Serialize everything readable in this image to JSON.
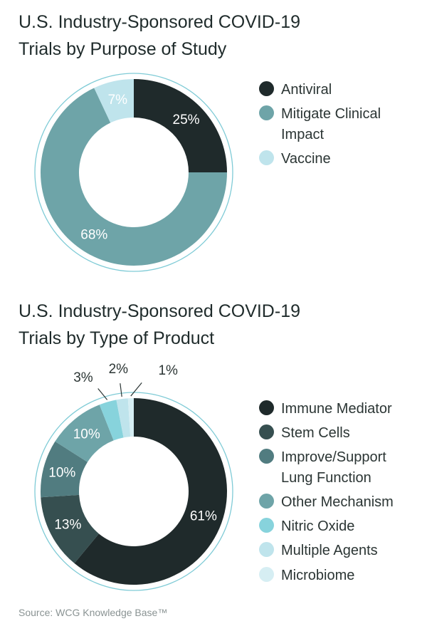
{
  "source": "Source: WCG Knowledge Base™",
  "chart_data": [
    {
      "type": "pie",
      "title": "U.S. Industry-Sponsored COVID-19 Trials by Purpose of Study",
      "title_lines": [
        "U.S. Industry-Sponsored COVID-19",
        "Trials by Purpose of Study"
      ],
      "categories": [
        "Antiviral",
        "Mitigate Clinical Impact",
        "Vaccine"
      ],
      "legend_lines": [
        [
          "Antiviral"
        ],
        [
          "Mitigate Clinical",
          "Impact"
        ],
        [
          "Vaccine"
        ]
      ],
      "values": [
        25,
        68,
        7
      ],
      "labels": [
        "25%",
        "68%",
        "7%"
      ],
      "colors": [
        "#1f2a2b",
        "#6ea4a8",
        "#bfe4ec"
      ],
      "label_colors": [
        "#ffffff",
        "#ffffff",
        "#ffffff"
      ],
      "legend_position": "right"
    },
    {
      "type": "pie",
      "title": "U.S. Industry-Sponsored COVID-19 Trials by Type of Product",
      "title_lines": [
        "U.S. Industry-Sponsored COVID-19",
        "Trials by Type of Product"
      ],
      "categories": [
        "Immune Mediator",
        "Stem Cells",
        "Improve/Support Lung Function",
        "Other Mechanism",
        "Nitric Oxide",
        "Multiple Agents",
        "Microbiome"
      ],
      "legend_lines": [
        [
          "Immune Mediator"
        ],
        [
          "Stem Cells"
        ],
        [
          "Improve/Support",
          "Lung Function"
        ],
        [
          "Other Mechanism"
        ],
        [
          "Nitric Oxide"
        ],
        [
          "Multiple Agents"
        ],
        [
          "Microbiome"
        ]
      ],
      "values": [
        61,
        13,
        10,
        10,
        3,
        2,
        1
      ],
      "labels": [
        "61%",
        "13%",
        "10%",
        "10%",
        "3%",
        "2%",
        "1%"
      ],
      "colors": [
        "#1f2a2b",
        "#364f50",
        "#517c80",
        "#6ea4a8",
        "#87d3dc",
        "#bfe4ec",
        "#d6eef3"
      ],
      "label_colors": [
        "#ffffff",
        "#ffffff",
        "#ffffff",
        "#ffffff",
        "#2b3534",
        "#2b3534",
        "#2b3534"
      ],
      "legend_position": "right"
    }
  ]
}
